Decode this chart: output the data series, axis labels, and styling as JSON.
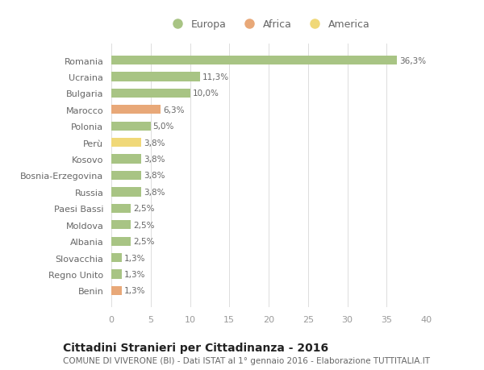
{
  "categories": [
    "Romania",
    "Ucraina",
    "Bulgaria",
    "Marocco",
    "Polonia",
    "Perù",
    "Kosovo",
    "Bosnia-Erzegovina",
    "Russia",
    "Paesi Bassi",
    "Moldova",
    "Albania",
    "Slovacchia",
    "Regno Unito",
    "Benin"
  ],
  "values": [
    36.3,
    11.3,
    10.0,
    6.3,
    5.0,
    3.8,
    3.8,
    3.8,
    3.8,
    2.5,
    2.5,
    2.5,
    1.3,
    1.3,
    1.3
  ],
  "continents": [
    "Europa",
    "Europa",
    "Europa",
    "Africa",
    "Europa",
    "America",
    "Europa",
    "Europa",
    "Europa",
    "Europa",
    "Europa",
    "Europa",
    "Europa",
    "Europa",
    "Africa"
  ],
  "colors": {
    "Europa": "#a8c484",
    "Africa": "#e8a878",
    "America": "#f0d878"
  },
  "labels": [
    "36,3%",
    "11,3%",
    "10,0%",
    "6,3%",
    "5,0%",
    "3,8%",
    "3,8%",
    "3,8%",
    "3,8%",
    "2,5%",
    "2,5%",
    "2,5%",
    "1,3%",
    "1,3%",
    "1,3%"
  ],
  "title": "Cittadini Stranieri per Cittadinanza - 2016",
  "subtitle": "COMUNE DI VIVERONE (BI) - Dati ISTAT al 1° gennaio 2016 - Elaborazione TUTTITALIA.IT",
  "legend": [
    "Europa",
    "Africa",
    "America"
  ],
  "xlim": [
    0,
    40
  ],
  "xticks": [
    0,
    5,
    10,
    15,
    20,
    25,
    30,
    35,
    40
  ],
  "background_color": "#ffffff",
  "grid_color": "#dddddd",
  "bar_height": 0.55,
  "label_fontsize": 7.5,
  "ytick_fontsize": 8,
  "xtick_fontsize": 8,
  "legend_fontsize": 9,
  "title_fontsize": 10,
  "subtitle_fontsize": 7.5,
  "label_color": "#666666",
  "ytick_color": "#666666",
  "xtick_color": "#999999",
  "title_color": "#222222",
  "subtitle_color": "#666666"
}
